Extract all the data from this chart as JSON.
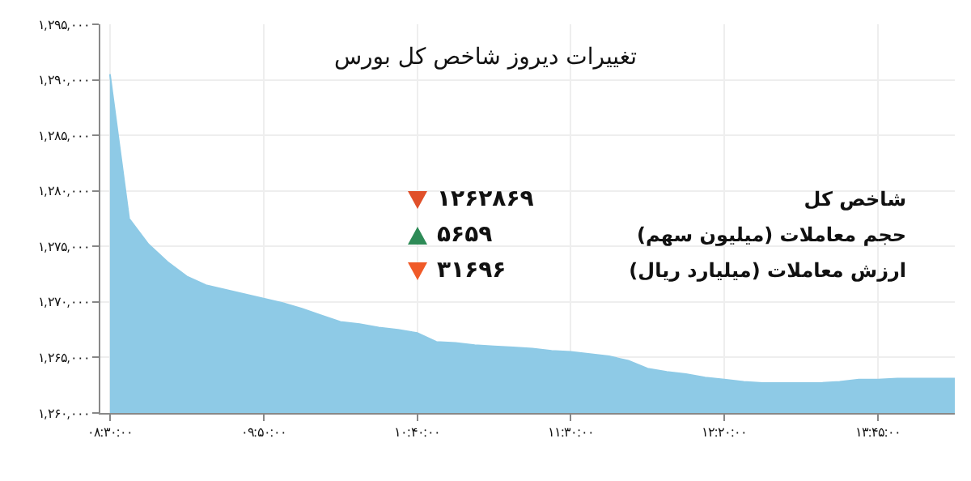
{
  "chart_data": {
    "type": "area",
    "title": "تغییرات دیروز شاخص کل بورس",
    "categories": [
      "۰۸:۳۰:۰۰",
      null,
      null,
      null,
      null,
      null,
      null,
      null,
      "۰۹:۵۰:۰۰",
      null,
      null,
      null,
      null,
      null,
      null,
      null,
      "۱۰:۴۰:۰۰",
      null,
      null,
      null,
      null,
      null,
      null,
      null,
      "۱۱:۳۰:۰۰",
      null,
      null,
      null,
      null,
      null,
      null,
      null,
      "۱۲:۲۰:۰۰",
      null,
      null,
      null,
      null,
      null,
      null,
      null,
      "۱۳:۴۵:۰۰",
      null,
      null,
      null,
      null
    ],
    "series": [
      {
        "color": "#8ecae6",
        "values": [
          1290500,
          1277500,
          1275200,
          1273600,
          1272300,
          1271500,
          1271100,
          1270700,
          1270300,
          1269900,
          1269400,
          1268800,
          1268200,
          1268000,
          1267700,
          1267500,
          1267200,
          1266400,
          1266300,
          1266100,
          1266000,
          1265900,
          1265800,
          1265600,
          1265500,
          1265300,
          1265100,
          1264700,
          1264000,
          1263700,
          1263500,
          1263200,
          1263000,
          1262800,
          1262700,
          1262700,
          1262700,
          1262700,
          1262800,
          1263000,
          1263000,
          1263100,
          1263100,
          1263100,
          1263100
        ]
      }
    ],
    "ylim": [
      1260000,
      1295000
    ],
    "yticks": [
      {
        "value": 1260000,
        "label": "۱,۲۶۰,۰۰۰"
      },
      {
        "value": 1265000,
        "label": "۱,۲۶۵,۰۰۰"
      },
      {
        "value": 1270000,
        "label": "۱,۲۷۰,۰۰۰"
      },
      {
        "value": 1275000,
        "label": "۱,۲۷۵,۰۰۰"
      },
      {
        "value": 1280000,
        "label": "۱,۲۸۰,۰۰۰"
      },
      {
        "value": 1285000,
        "label": "۱,۲۸۵,۰۰۰"
      },
      {
        "value": 1290000,
        "label": "۱,۲۹۰,۰۰۰"
      },
      {
        "value": 1295000,
        "label": "۱,۲۹۵,۰۰۰"
      }
    ],
    "grid": true,
    "marker": "none",
    "annotations": [
      "شاخص کل",
      "۱۲۶۲۸۶۹",
      "حجم معاملات (میلیون سهم)",
      "۵۶۵۹",
      "ارزش معاملات (میلیارد ریال)",
      "۳۱۶۹۶"
    ]
  }
}
